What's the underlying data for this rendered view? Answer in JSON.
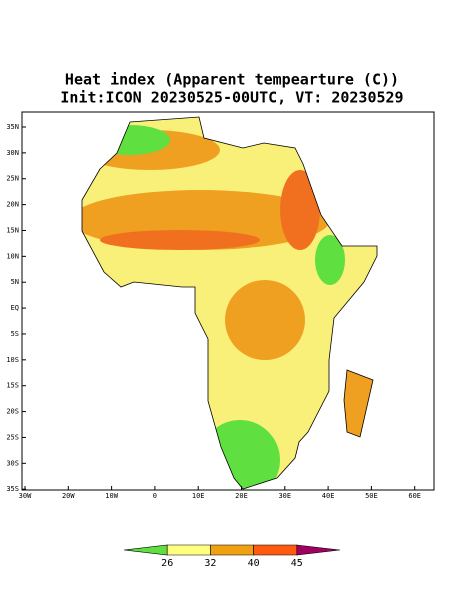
{
  "title": [
    "Heat index (Apparent tempearture (C))",
    "Init:ICON 20230525-00UTC, VT: 20230529"
  ],
  "map": {
    "lat_ticks": [
      "35N",
      "30N",
      "25N",
      "20N",
      "15N",
      "10N",
      "5N",
      "EQ",
      "5S",
      "10S",
      "15S",
      "20S",
      "25S",
      "30S",
      "35S"
    ],
    "lon_ticks": [
      "30W",
      "20W",
      "10W",
      "0",
      "10E",
      "20E",
      "30E",
      "40E",
      "50E",
      "60E"
    ]
  },
  "colorbar": {
    "ticks": [
      26,
      32,
      40,
      45
    ],
    "colors": [
      "#5fe040",
      "#ffff80",
      "#f0a010",
      "#ff5a10",
      "#a00060"
    ]
  }
}
